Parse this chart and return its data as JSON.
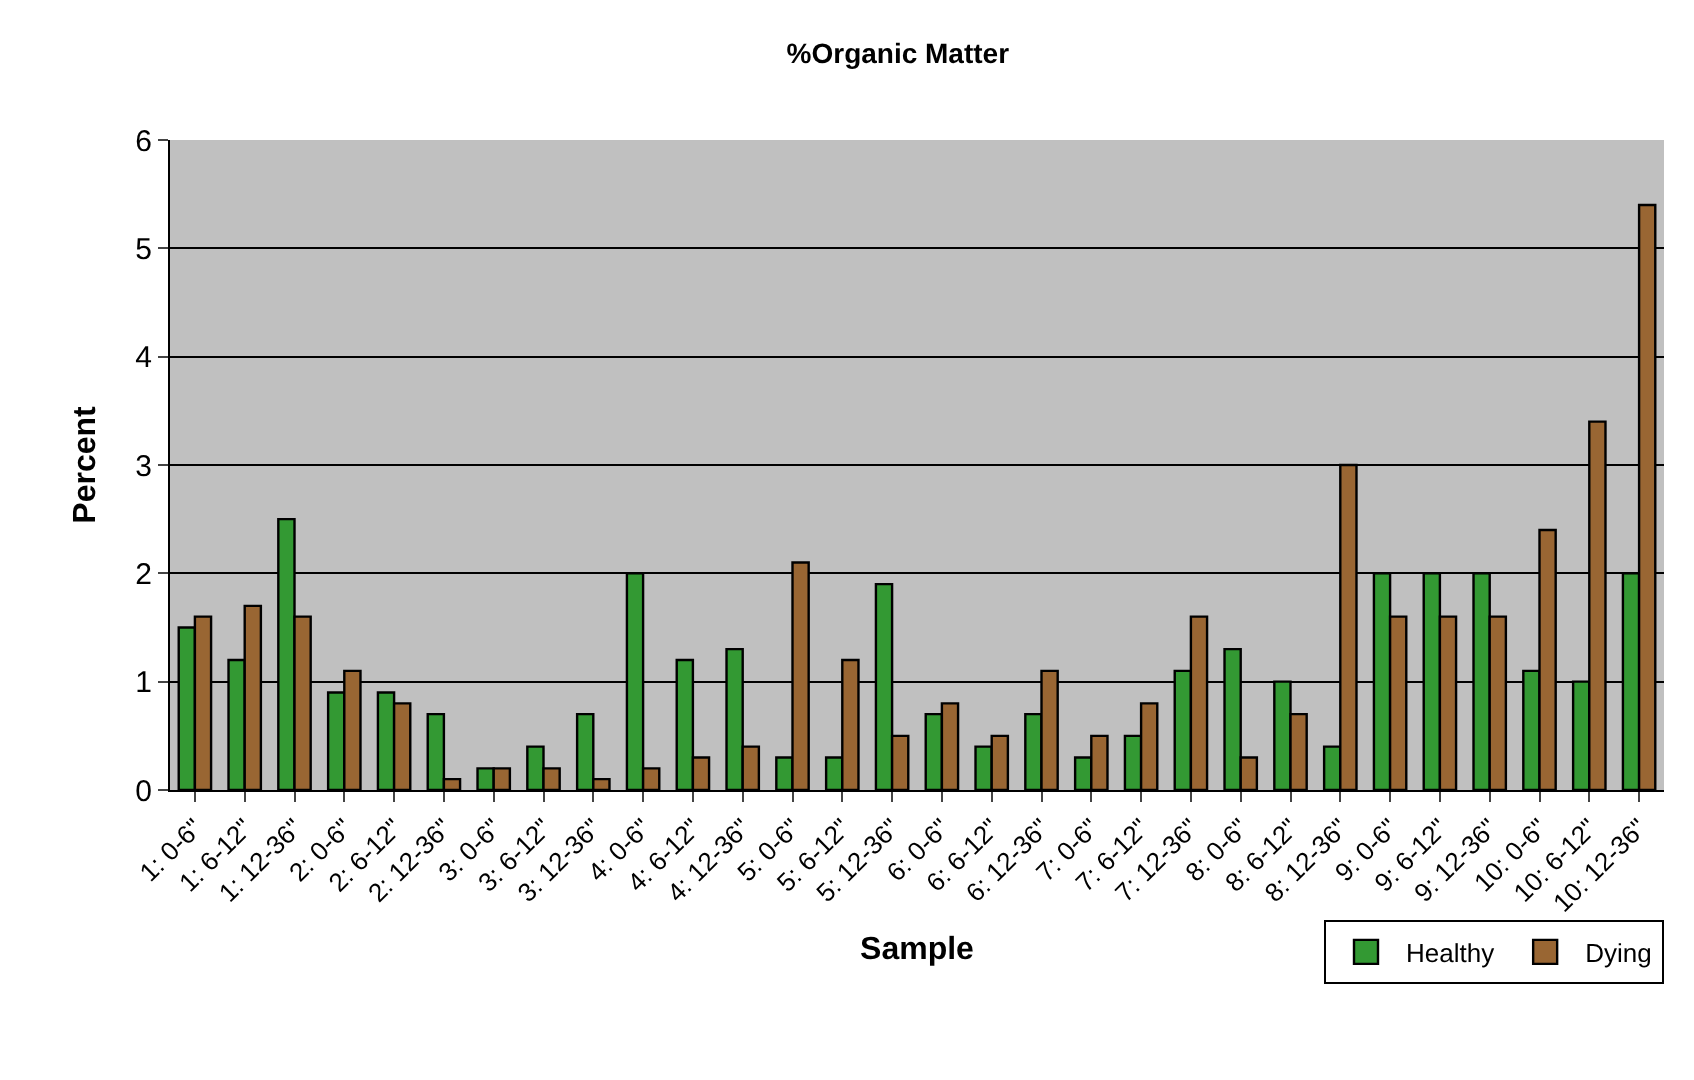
{
  "chart_data": {
    "type": "bar",
    "title": "%Organic Matter",
    "xlabel": "Sample",
    "ylabel": "Percent",
    "categories": [
      "1: 0-6\"",
      "1: 6-12\"",
      "1: 12-36\"",
      "2: 0-6\"",
      "2: 6-12\"",
      "2: 12-36\"",
      "3: 0-6\"",
      "3: 6-12\"",
      "3: 12-36\"",
      "4: 0-6\"",
      "4: 6-12\"",
      "4: 12-36\"",
      "5: 0-6\"",
      "5: 6-12\"",
      "5: 12-36\"",
      "6: 0-6\"",
      "6: 6-12\"",
      "6: 12-36\"",
      "7: 0-6\"",
      "7: 6-12\"",
      "7: 12-36\"",
      "8: 0-6\"",
      "8: 6-12\"",
      "8: 12-36\"",
      "9: 0-6\"",
      "9: 6-12\"",
      "9: 12-36\"",
      "10: 0-6\"",
      "10: 6-12\"",
      "10: 12-36\""
    ],
    "series": [
      {
        "name": "Healthy",
        "color": "#339933",
        "values": [
          1.5,
          1.2,
          2.5,
          0.9,
          0.9,
          0.7,
          0.2,
          0.4,
          0.7,
          2.0,
          1.2,
          1.3,
          0.3,
          0.3,
          1.9,
          0.7,
          0.4,
          0.7,
          0.3,
          0.5,
          1.1,
          1.3,
          1.0,
          0.4,
          2.0,
          2.0,
          2.0,
          1.1,
          1.0,
          2.0
        ]
      },
      {
        "name": "Dying",
        "color": "#996633",
        "values": [
          1.6,
          1.7,
          1.6,
          1.1,
          0.8,
          0.1,
          0.2,
          0.2,
          0.1,
          0.2,
          0.3,
          0.4,
          2.1,
          1.2,
          0.5,
          0.8,
          0.5,
          1.1,
          0.5,
          0.8,
          1.6,
          0.3,
          0.7,
          3.0,
          1.6,
          1.6,
          1.6,
          2.4,
          3.4,
          5.4
        ]
      }
    ],
    "ylim": [
      0,
      6
    ],
    "yticks": [
      0,
      1,
      2,
      3,
      4,
      5,
      6
    ],
    "grid": "y",
    "legend": "bottom right"
  }
}
